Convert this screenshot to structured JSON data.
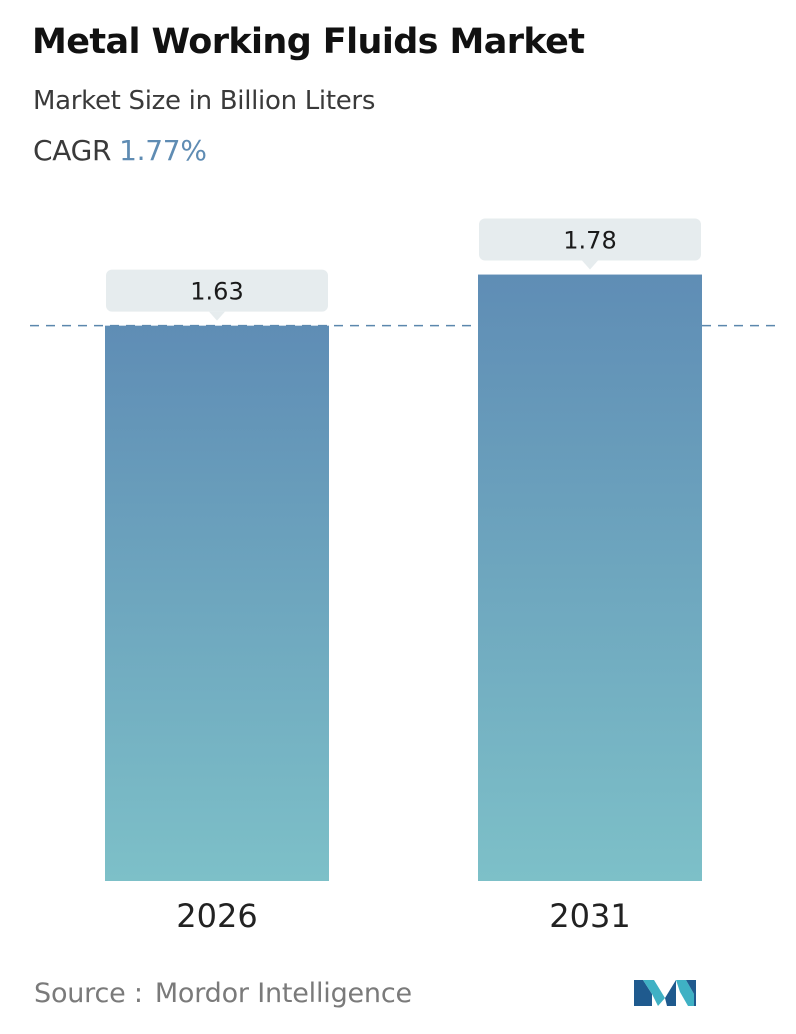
{
  "header": {
    "title": "Metal Working Fluids Market",
    "subtitle": "Market Size in Billion Liters",
    "cagr_label": "CAGR",
    "cagr_value": "1.77%"
  },
  "chart_data": {
    "type": "bar",
    "categories": [
      "2026",
      "2031"
    ],
    "values": [
      1.63,
      1.78
    ],
    "data_labels": [
      "1.63",
      "1.78"
    ],
    "reference_line": "dashed line at first bar value",
    "colors": {
      "bar_top": "#5f8db5",
      "bar_bottom": "#7dc0c8",
      "label_box": "#e6ecee",
      "dashed_line": "#5b87ad",
      "axis_label": "#222222"
    }
  },
  "footer": {
    "source_label": "Source :",
    "source_name": "Mordor Intelligence",
    "logo_icon": "mordor-intelligence-logo"
  }
}
